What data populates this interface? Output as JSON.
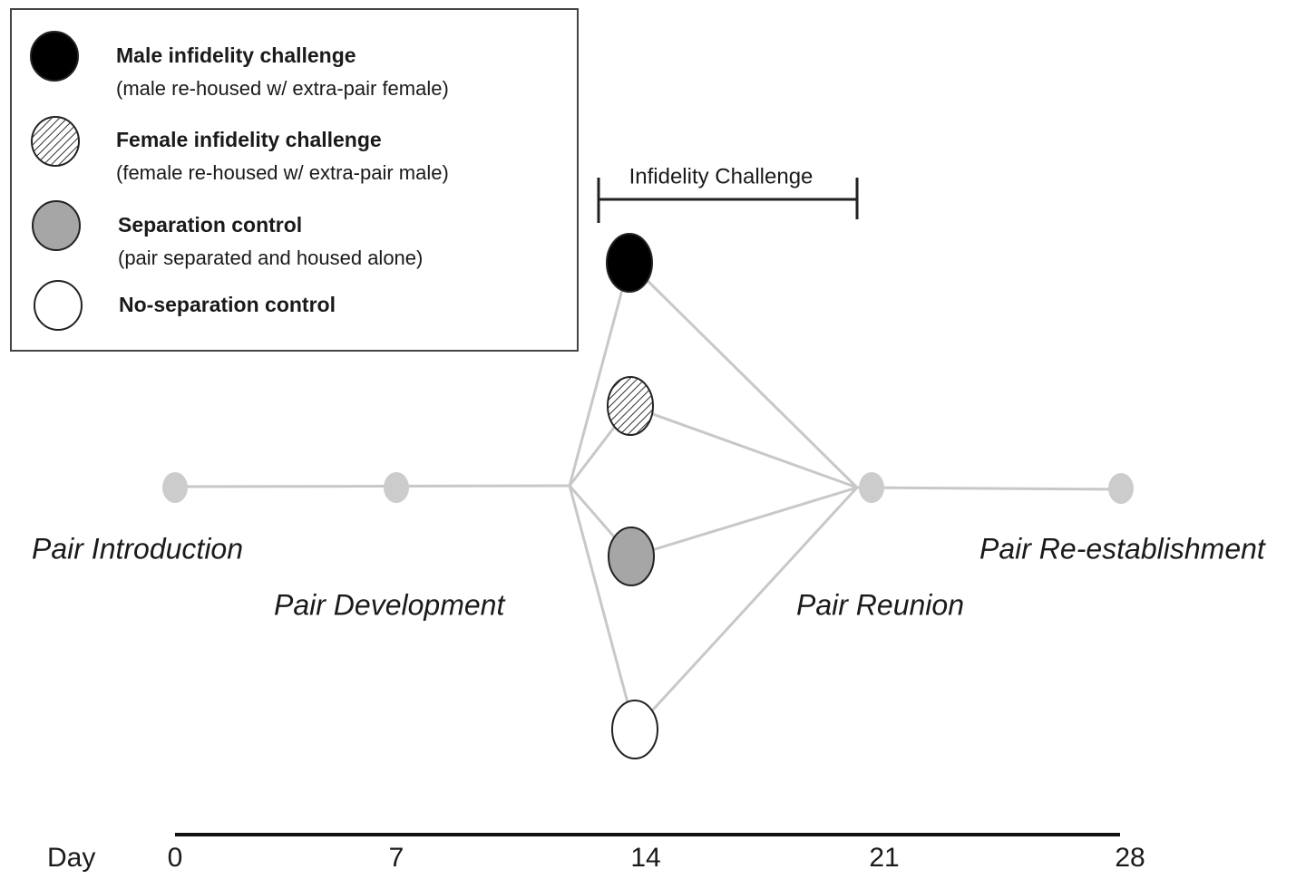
{
  "legend": {
    "items": [
      {
        "title": "Male infidelity challenge",
        "subtitle": "(male re-housed w/ extra-pair female)"
      },
      {
        "title": "Female infidelity challenge",
        "subtitle": "(female re-housed w/ extra-pair male)"
      },
      {
        "title": "Separation control",
        "subtitle": "(pair separated and housed alone)"
      },
      {
        "title": "No-separation control"
      }
    ]
  },
  "bracket": {
    "label": "Infidelity Challenge"
  },
  "stages": [
    "Pair Introduction",
    "Pair Development",
    "Pair Reunion",
    "Pair Re-establishment"
  ],
  "axis": {
    "label": "Day",
    "ticks": [
      0,
      7,
      14,
      21,
      28
    ]
  }
}
